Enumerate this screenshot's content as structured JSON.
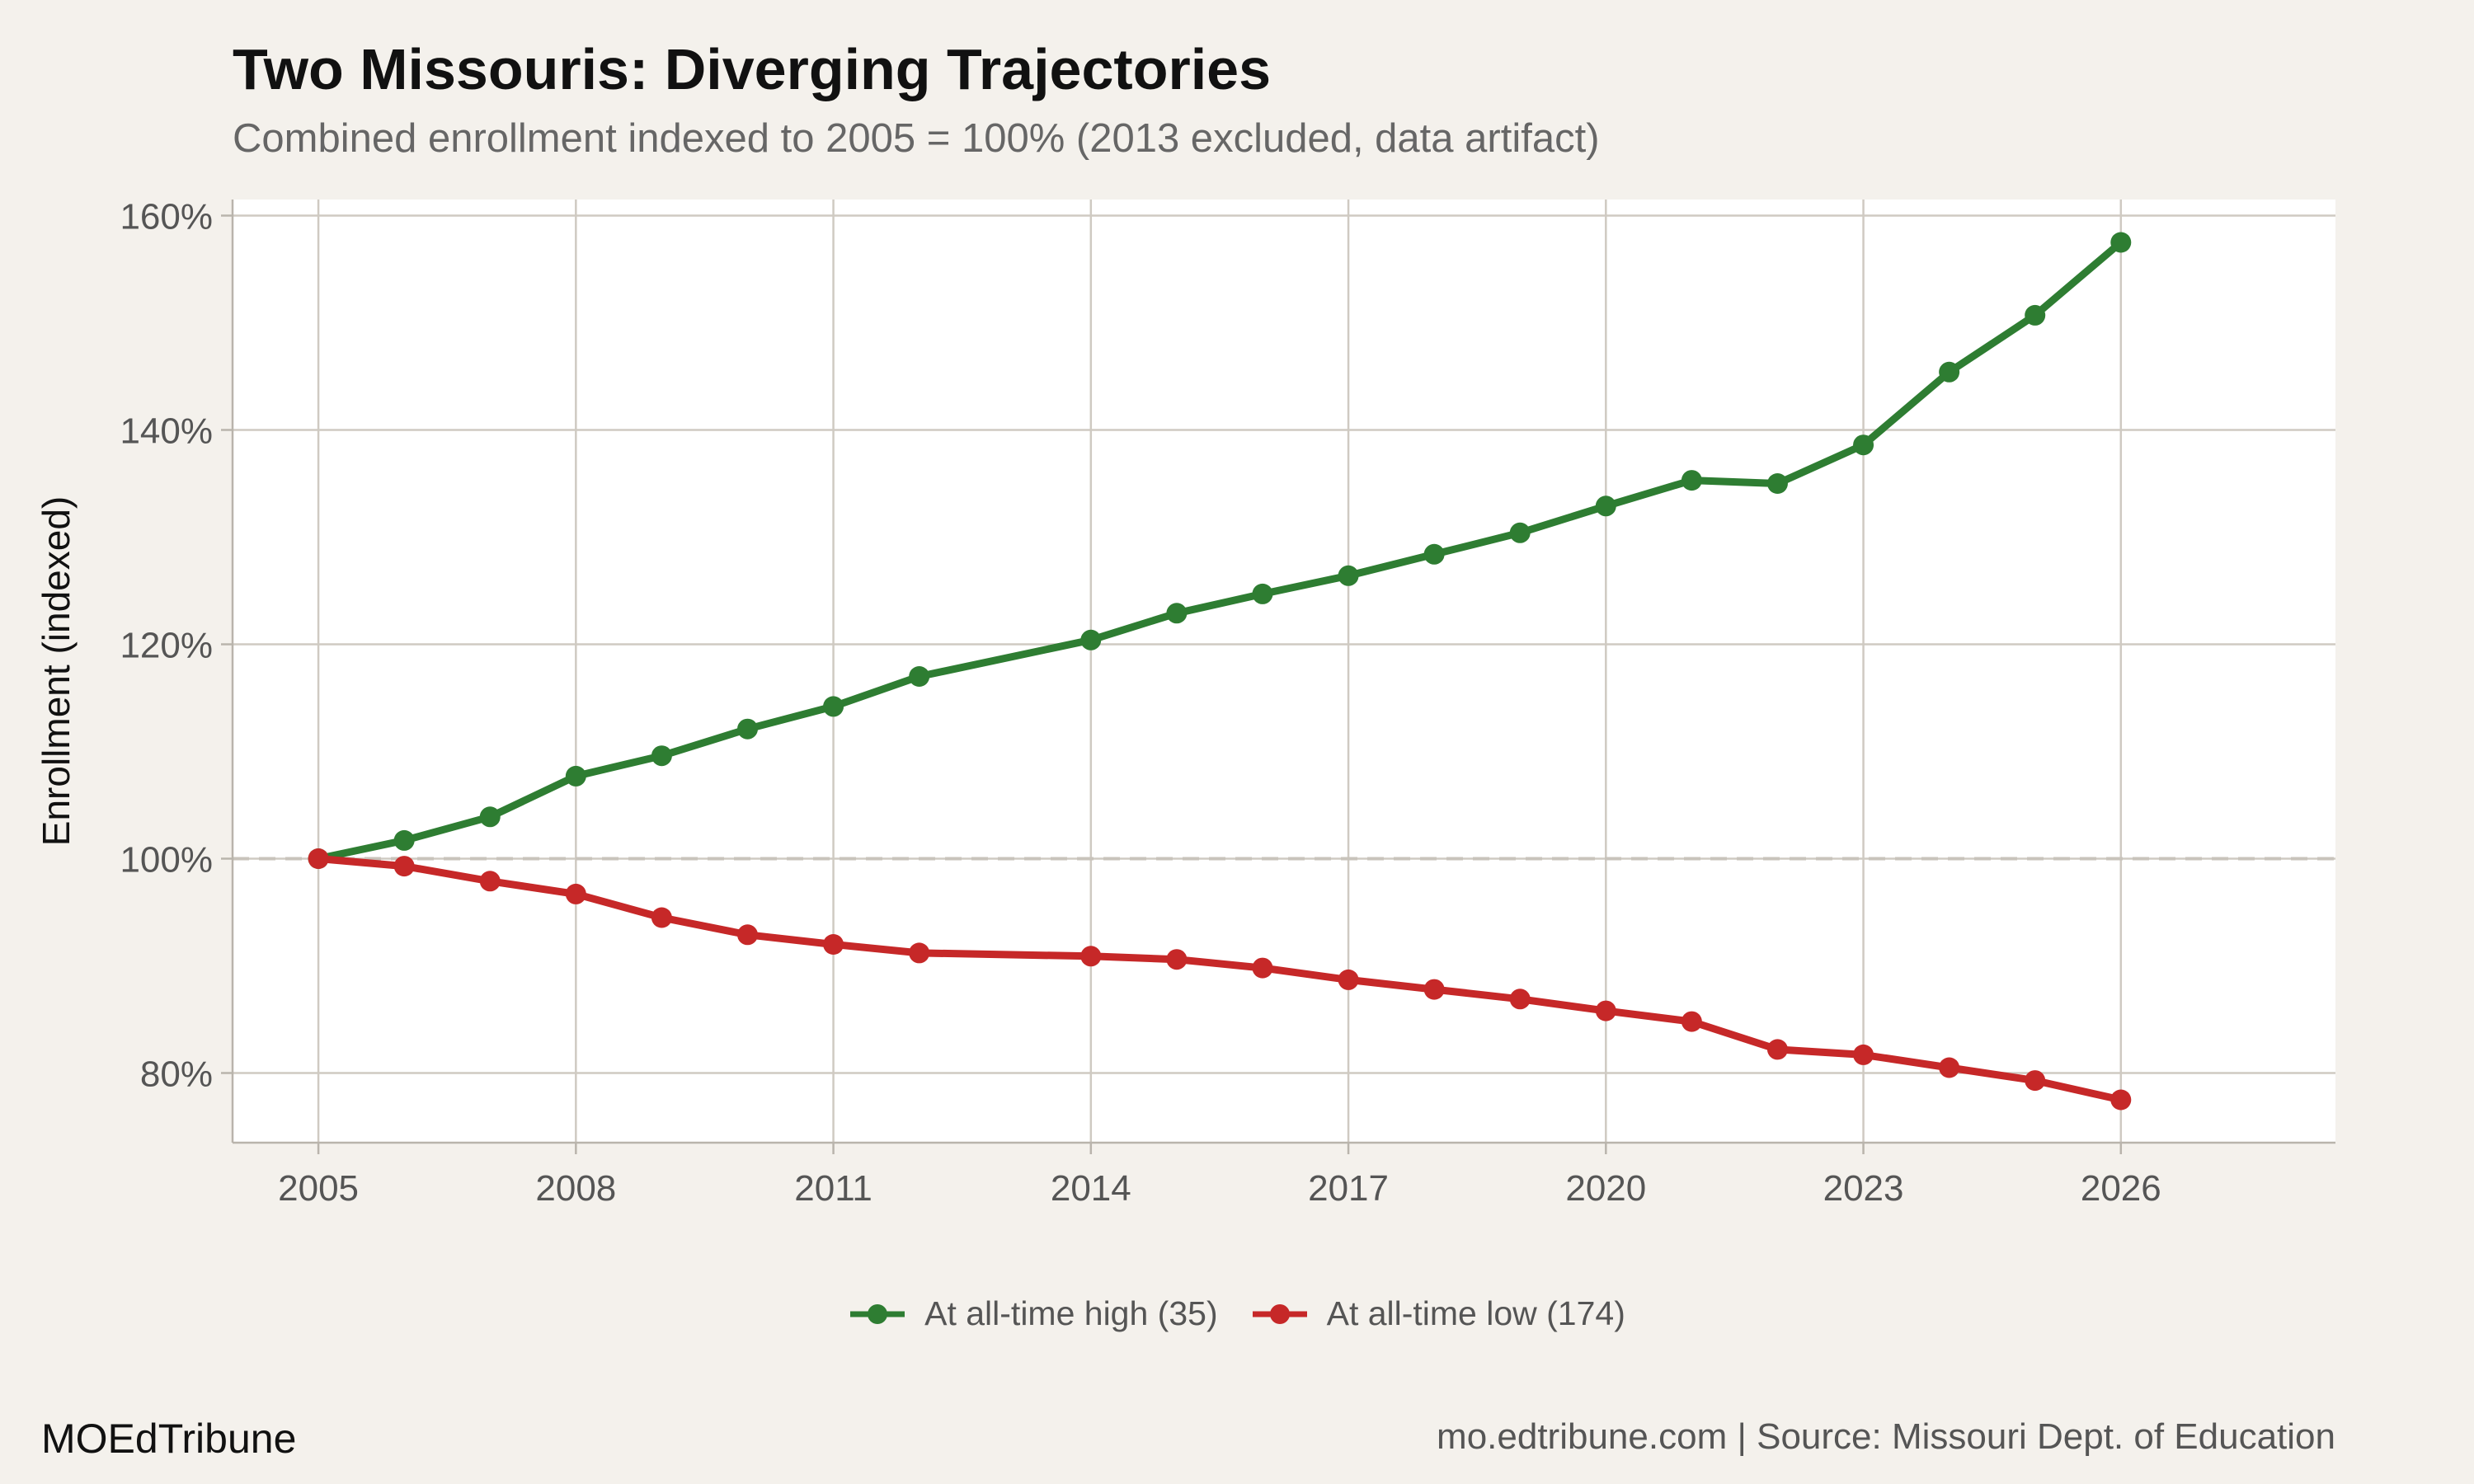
{
  "header": {
    "title": "Two Missouris: Diverging Trajectories",
    "subtitle": "Combined enrollment indexed to 2005 = 100% (2013 excluded, data artifact)"
  },
  "footer": {
    "brand": "MOEdTribune",
    "source": "mo.edtribune.com | Source: Missouri Dept. of Education"
  },
  "chart_data": {
    "type": "line",
    "title": "Two Missouris: Diverging Trajectories",
    "subtitle": "Combined enrollment indexed to 2005 = 100% (2013 excluded, data artifact)",
    "xlabel": "",
    "ylabel": "Enrollment (indexed)",
    "xlim": [
      2004,
      2028.5
    ],
    "ylim": [
      73.5,
      161.5
    ],
    "x_ticks": [
      2005,
      2008,
      2011,
      2014,
      2017,
      2020,
      2023,
      2026
    ],
    "y_ticks": [
      80,
      100,
      120,
      140,
      160
    ],
    "y_tick_labels": [
      "80%",
      "100%",
      "120%",
      "140%",
      "160%"
    ],
    "reference_line": {
      "y": 100,
      "style": "dashed"
    },
    "grid": true,
    "legend_position": "bottom",
    "series": [
      {
        "name": "At all-time high (35)",
        "color": "#2e7d32",
        "points": [
          [
            2005,
            100.0
          ],
          [
            2006,
            101.7
          ],
          [
            2007,
            103.9
          ],
          [
            2008,
            107.7
          ],
          [
            2009,
            109.6
          ],
          [
            2010,
            112.1
          ],
          [
            2011,
            114.2
          ],
          [
            2012,
            117.0
          ],
          [
            2014,
            120.4
          ],
          [
            2015,
            122.9
          ],
          [
            2016,
            124.7
          ],
          [
            2017,
            126.4
          ],
          [
            2018,
            128.4
          ],
          [
            2019,
            130.4
          ],
          [
            2020,
            132.9
          ],
          [
            2021,
            135.3
          ],
          [
            2022,
            135.0
          ],
          [
            2023,
            138.6
          ],
          [
            2024,
            145.4
          ],
          [
            2025,
            150.7
          ],
          [
            2026,
            157.5
          ]
        ]
      },
      {
        "name": "At all-time low (174)",
        "color": "#c62828",
        "points": [
          [
            2005,
            100.0
          ],
          [
            2006,
            99.3
          ],
          [
            2007,
            97.9
          ],
          [
            2008,
            96.7
          ],
          [
            2009,
            94.5
          ],
          [
            2010,
            92.9
          ],
          [
            2011,
            92.0
          ],
          [
            2012,
            91.2
          ],
          [
            2014,
            90.9
          ],
          [
            2015,
            90.6
          ],
          [
            2016,
            89.8
          ],
          [
            2017,
            88.7
          ],
          [
            2018,
            87.8
          ],
          [
            2019,
            86.9
          ],
          [
            2020,
            85.8
          ],
          [
            2021,
            84.8
          ],
          [
            2022,
            82.2
          ],
          [
            2023,
            81.7
          ],
          [
            2024,
            80.5
          ],
          [
            2025,
            79.3
          ],
          [
            2026,
            77.5
          ]
        ]
      }
    ]
  }
}
